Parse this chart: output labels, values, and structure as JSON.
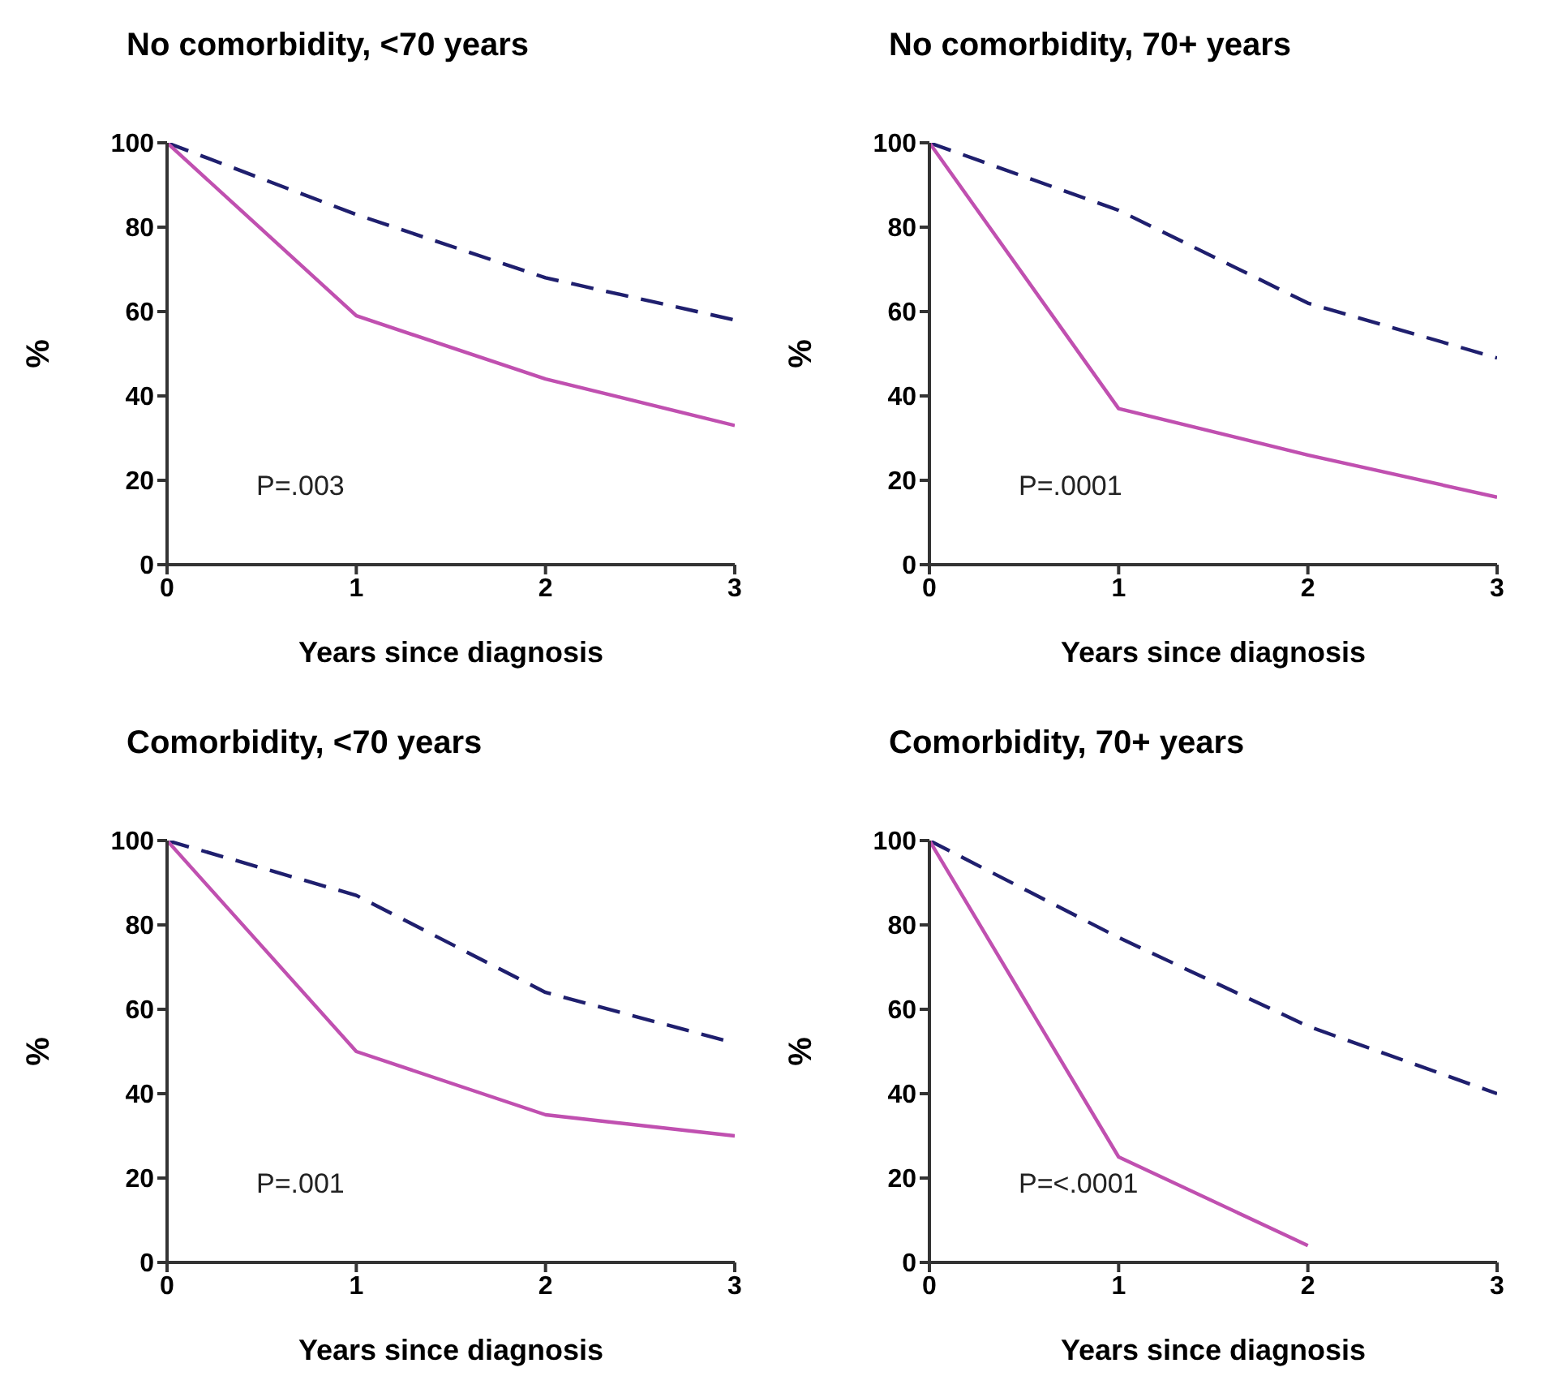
{
  "chart_data": [
    {
      "type": "line",
      "title": "No comorbidity, <70 years",
      "xlabel": "Years since diagnosis",
      "ylabel": "%",
      "x": [
        0,
        1,
        2,
        3
      ],
      "xlim": [
        0,
        3
      ],
      "xticks": [
        0,
        1,
        2,
        3
      ],
      "ylim": [
        0,
        100
      ],
      "yticks": [
        0,
        20,
        40,
        60,
        80,
        100
      ],
      "grid": false,
      "legend": false,
      "marker": "none",
      "annotations": [
        "P=.003"
      ],
      "series": [
        {
          "color": "#1f1f6e",
          "line_style": "dashed",
          "values": [
            100,
            83,
            68,
            58
          ]
        },
        {
          "color": "#c050b0",
          "line_style": "solid",
          "values": [
            100,
            59,
            44,
            33
          ]
        }
      ]
    },
    {
      "type": "line",
      "title": "No comorbidity, 70+ years",
      "xlabel": "Years since diagnosis",
      "ylabel": "%",
      "x": [
        0,
        1,
        2,
        3
      ],
      "xlim": [
        0,
        3
      ],
      "xticks": [
        0,
        1,
        2,
        3
      ],
      "ylim": [
        0,
        100
      ],
      "yticks": [
        0,
        20,
        40,
        60,
        80,
        100
      ],
      "grid": false,
      "legend": false,
      "marker": "none",
      "annotations": [
        "P=.0001"
      ],
      "series": [
        {
          "color": "#1f1f6e",
          "line_style": "dashed",
          "values": [
            100,
            84,
            62,
            49
          ]
        },
        {
          "color": "#c050b0",
          "line_style": "solid",
          "values": [
            100,
            37,
            26,
            16
          ]
        }
      ]
    },
    {
      "type": "line",
      "title": "Comorbidity, <70 years",
      "xlabel": "Years since diagnosis",
      "ylabel": "%",
      "x": [
        0,
        1,
        2,
        3
      ],
      "xlim": [
        0,
        3
      ],
      "xticks": [
        0,
        1,
        2,
        3
      ],
      "ylim": [
        0,
        100
      ],
      "yticks": [
        0,
        20,
        40,
        60,
        80,
        100
      ],
      "grid": false,
      "legend": false,
      "marker": "none",
      "annotations": [
        "P=.001"
      ],
      "series": [
        {
          "color": "#1f1f6e",
          "line_style": "dashed",
          "values": [
            100,
            87,
            64,
            52
          ]
        },
        {
          "color": "#c050b0",
          "line_style": "solid",
          "values": [
            100,
            50,
            35,
            30
          ]
        }
      ]
    },
    {
      "type": "line",
      "title": "Comorbidity, 70+ years",
      "xlabel": "Years since diagnosis",
      "ylabel": "%",
      "x": [
        0,
        1,
        2,
        3
      ],
      "xlim": [
        0,
        3
      ],
      "xticks": [
        0,
        1,
        2,
        3
      ],
      "ylim": [
        0,
        100
      ],
      "yticks": [
        0,
        20,
        40,
        60,
        80,
        100
      ],
      "grid": false,
      "legend": false,
      "marker": "none",
      "annotations": [
        "P=<.0001"
      ],
      "series": [
        {
          "color": "#1f1f6e",
          "line_style": "dashed",
          "values": [
            100,
            77,
            56,
            40
          ]
        },
        {
          "color": "#c050b0",
          "line_style": "solid",
          "values": [
            100,
            25,
            4,
            null
          ]
        }
      ]
    }
  ]
}
